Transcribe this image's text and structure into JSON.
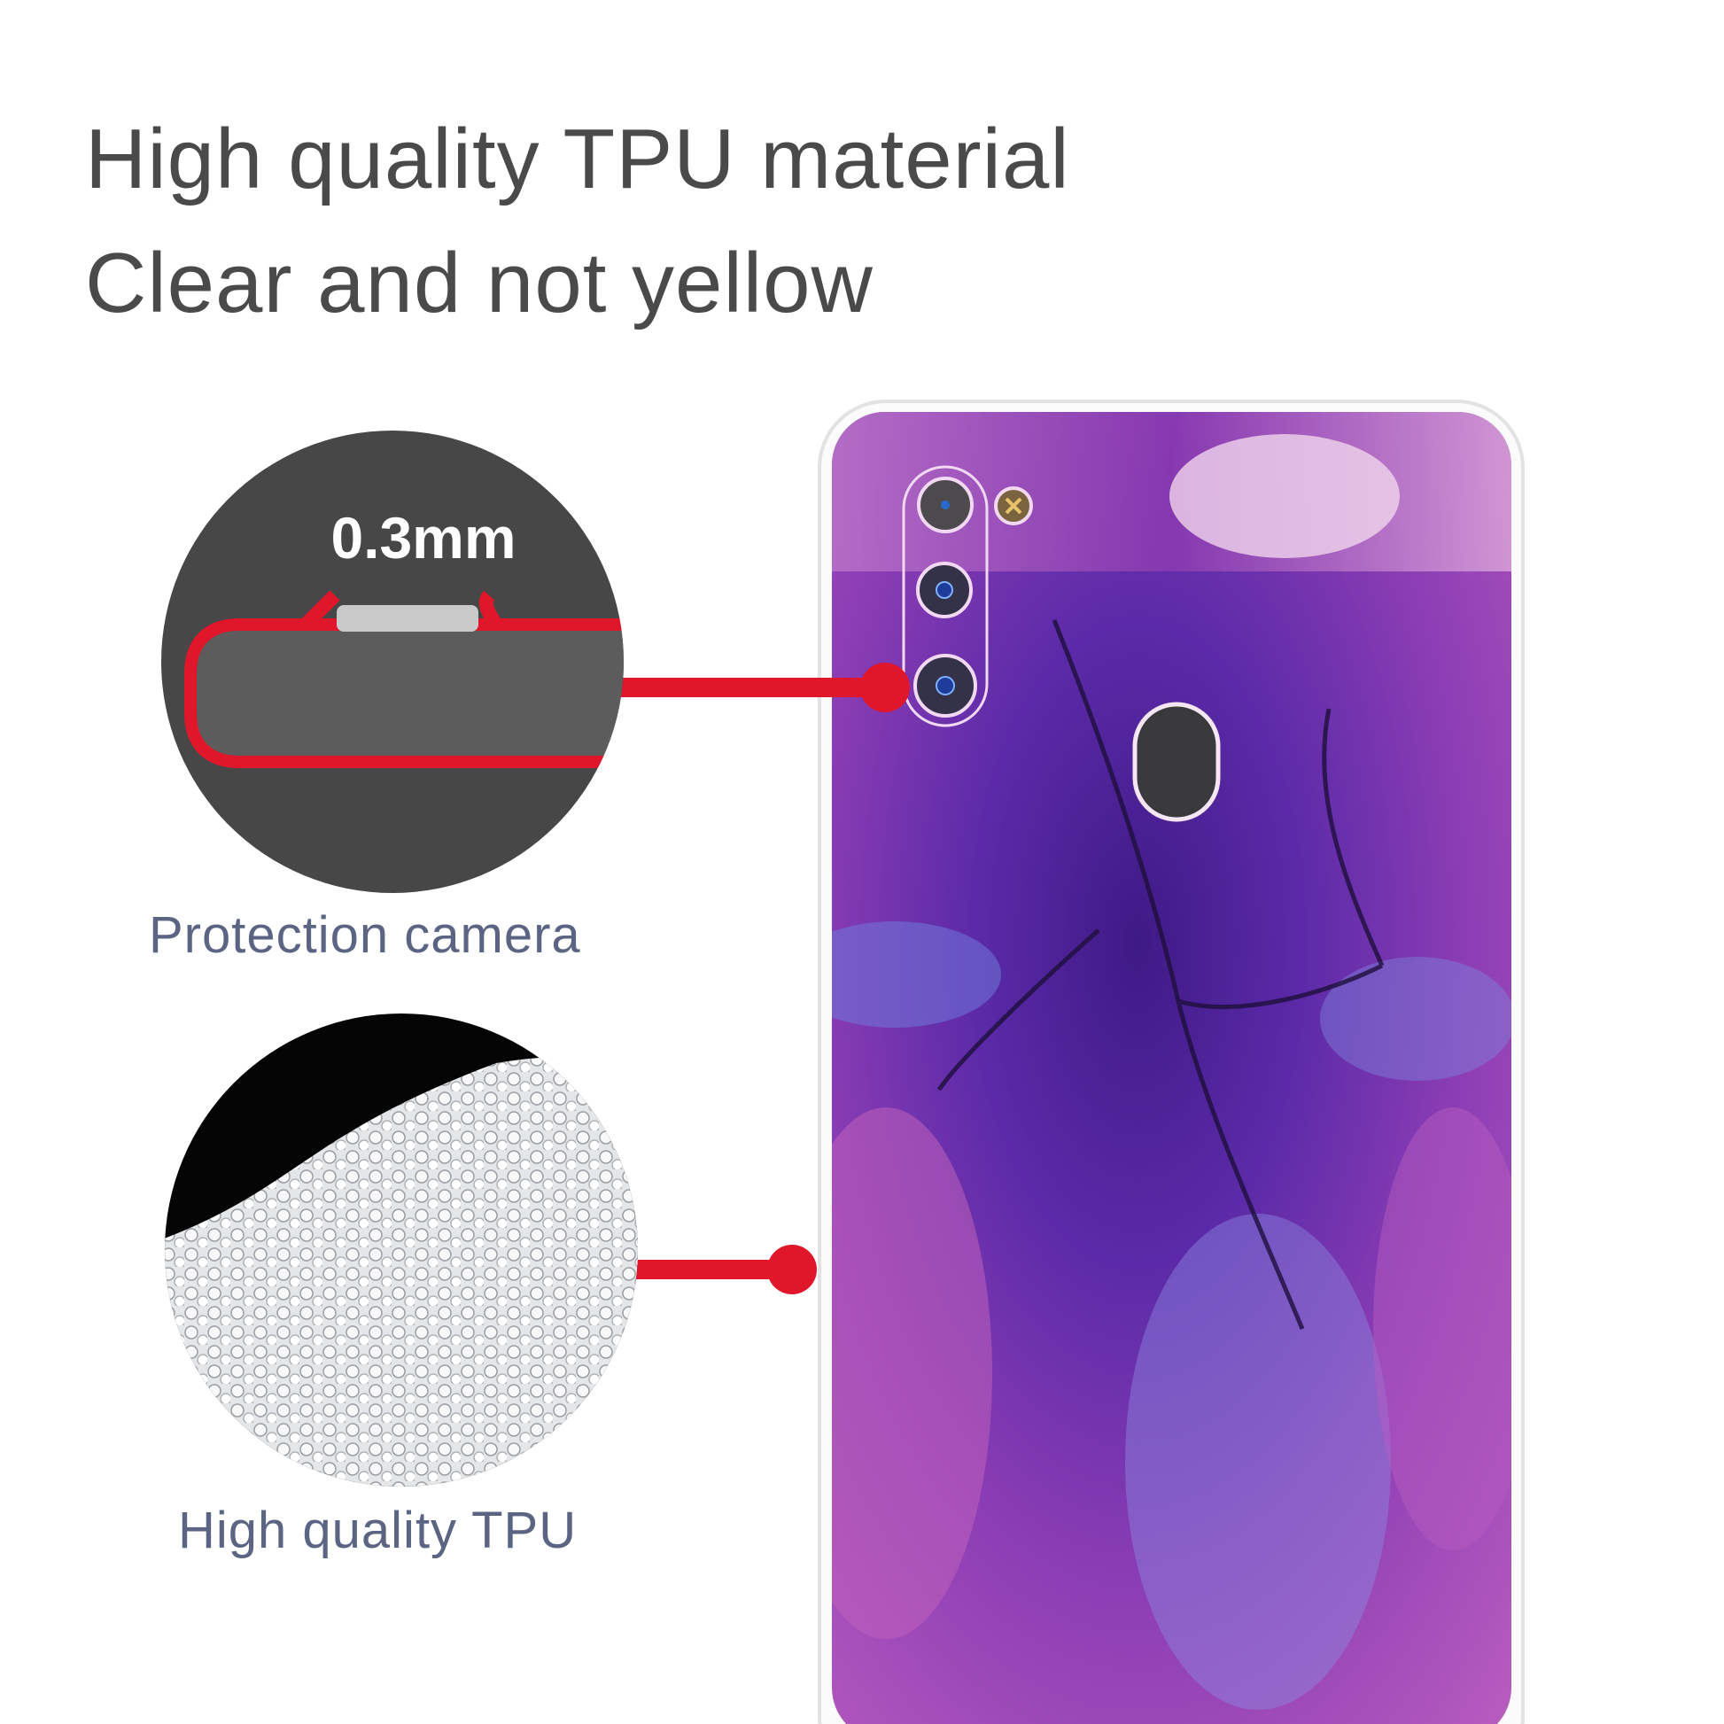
{
  "headline": {
    "line1": "High quality TPU material",
    "line2": "Clear and not yellow"
  },
  "callouts": [
    {
      "label": "Protection camera",
      "detail_text": "0.3mm"
    },
    {
      "label": "High quality TPU"
    }
  ],
  "colors": {
    "callout_line": "#e0162b",
    "headline_text": "#4a4a4a",
    "caption_text": "#5b6482",
    "marble_primary": "#6a2bb0",
    "marble_secondary": "#b04fb8"
  }
}
